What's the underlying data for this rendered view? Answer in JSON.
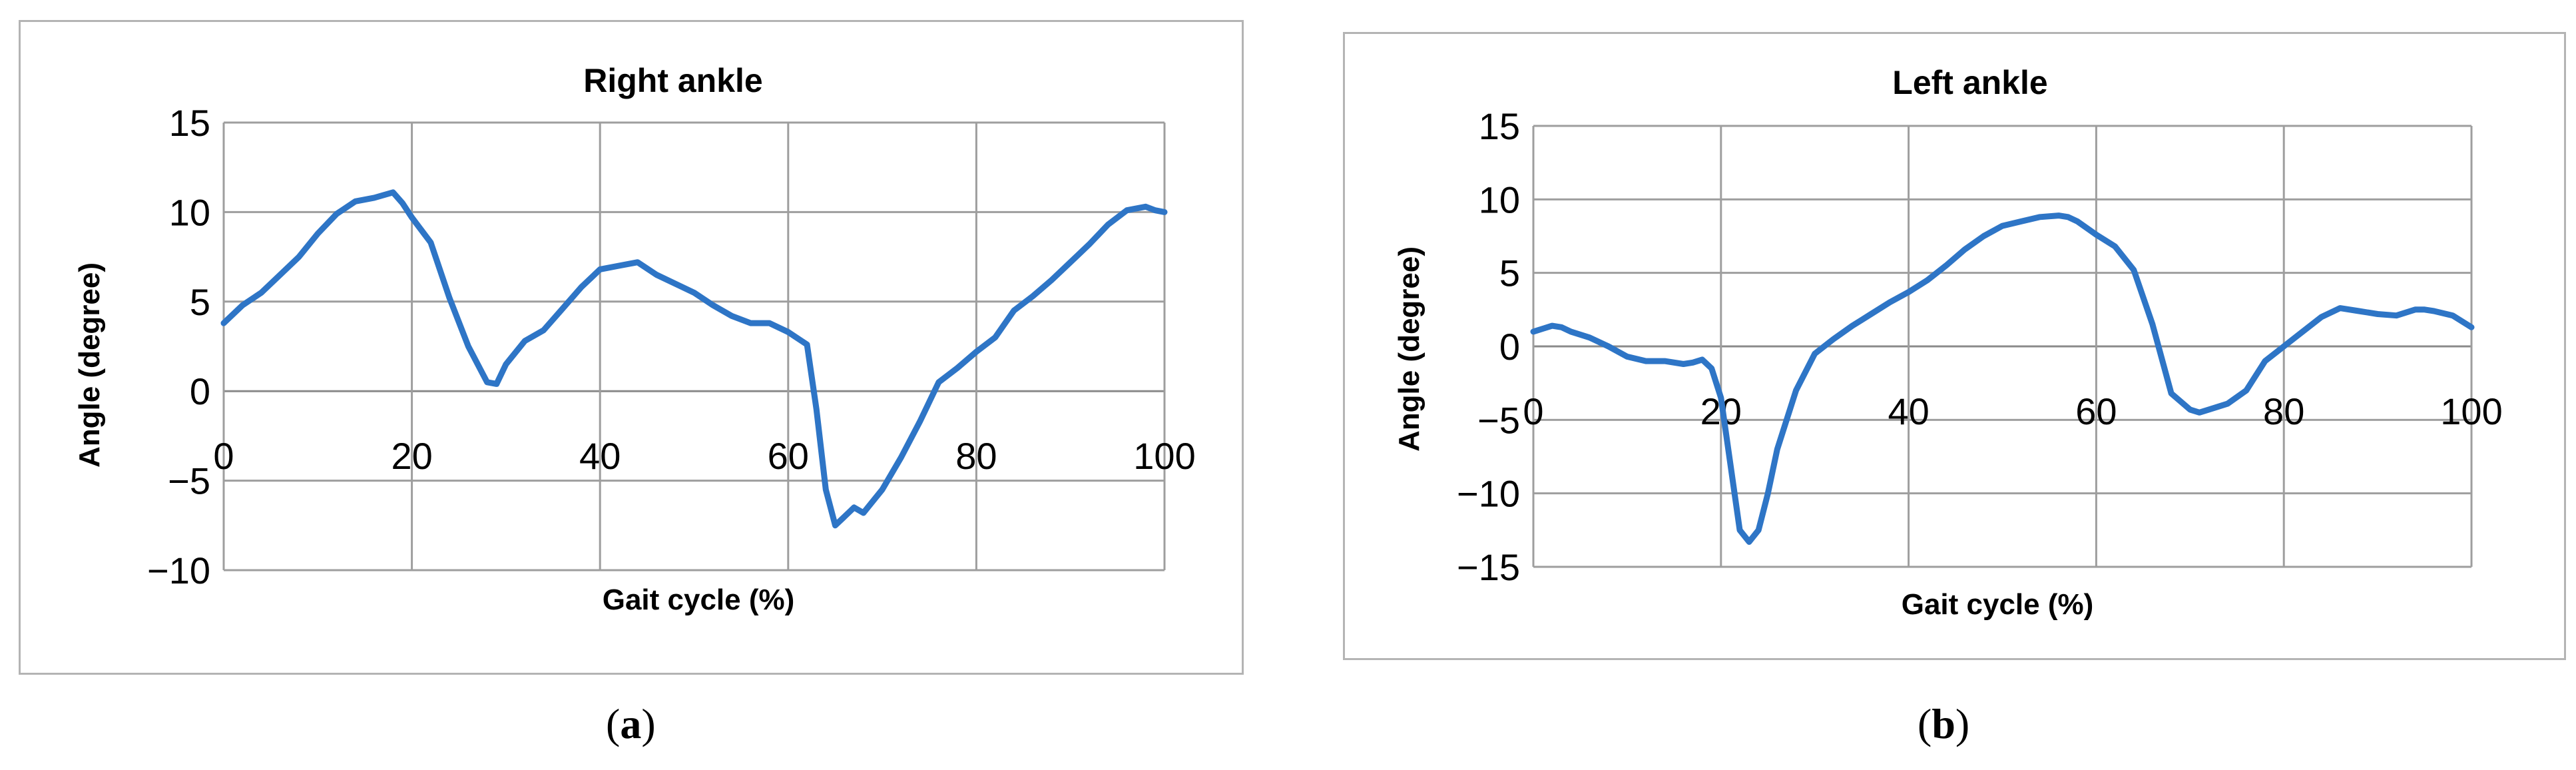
{
  "colors": {
    "line": "#2e75c6",
    "grid": "#9e9e9e",
    "border": "#b4b4b4"
  },
  "captions": {
    "a": "a",
    "b": "b"
  },
  "chart_data": [
    {
      "type": "line",
      "title": "Right ankle",
      "xlabel": "Gait cycle (%)",
      "ylabel": "Angle (degree)",
      "xlim": [
        0,
        100
      ],
      "ylim": [
        -10,
        15
      ],
      "xticks": [
        "0",
        "20",
        "40",
        "60",
        "80",
        "100"
      ],
      "yticks": [
        "15",
        "10",
        "5",
        "0",
        "−5",
        "−10"
      ],
      "grid": true,
      "legend": "none",
      "series": [
        {
          "x": [
            0,
            2,
            4,
            6,
            8,
            10,
            12,
            14,
            16,
            18,
            19,
            20,
            22,
            24,
            26,
            28,
            29,
            30,
            32,
            34,
            36,
            38,
            40,
            42,
            44,
            46,
            48,
            50,
            52,
            54,
            56,
            58,
            60,
            62,
            63,
            64,
            65,
            66,
            67,
            68,
            70,
            72,
            74,
            76,
            78,
            80,
            82,
            84,
            86,
            88,
            90,
            92,
            94,
            96,
            98,
            99,
            100
          ],
          "y": [
            3.8,
            4.8,
            5.5,
            6.5,
            7.5,
            8.8,
            9.9,
            10.6,
            10.8,
            11.1,
            10.5,
            9.7,
            8.3,
            5.2,
            2.5,
            0.5,
            0.4,
            1.5,
            2.8,
            3.4,
            4.6,
            5.8,
            6.8,
            7.0,
            7.2,
            6.5,
            6.0,
            5.5,
            4.8,
            4.2,
            3.8,
            3.8,
            3.3,
            2.6,
            -1.0,
            -5.5,
            -7.5,
            -7.0,
            -6.5,
            -6.8,
            -5.5,
            -3.7,
            -1.7,
            0.5,
            1.3,
            2.2,
            3.0,
            4.5,
            5.3,
            6.2,
            7.2,
            8.2,
            9.3,
            10.1,
            10.3,
            10.1,
            10.0
          ]
        }
      ]
    },
    {
      "type": "line",
      "title": "Left ankle",
      "xlabel": "Gait cycle (%)",
      "ylabel": "Angle (degree)",
      "xlim": [
        0,
        100
      ],
      "ylim": [
        -15,
        15
      ],
      "xticks": [
        "0",
        "20",
        "40",
        "60",
        "80",
        "100"
      ],
      "yticks": [
        "15",
        "10",
        "5",
        "0",
        "−5",
        "−10",
        "−15"
      ],
      "grid": true,
      "legend": "none",
      "series": [
        {
          "x": [
            0,
            1,
            2,
            3,
            4,
            6,
            8,
            10,
            12,
            14,
            16,
            17,
            18,
            19,
            20,
            21,
            22,
            23,
            24,
            25,
            26,
            28,
            30,
            32,
            34,
            36,
            38,
            40,
            42,
            44,
            46,
            48,
            50,
            52,
            54,
            56,
            57,
            58,
            60,
            62,
            64,
            66,
            68,
            70,
            71,
            72,
            74,
            76,
            78,
            80,
            82,
            84,
            86,
            88,
            90,
            92,
            94,
            95,
            96,
            98,
            100
          ],
          "y": [
            1.0,
            1.2,
            1.4,
            1.3,
            1.0,
            0.6,
            0.0,
            -0.7,
            -1.0,
            -1.0,
            -1.2,
            -1.1,
            -0.9,
            -1.5,
            -3.5,
            -8.0,
            -12.5,
            -13.3,
            -12.5,
            -10.0,
            -7.0,
            -3.0,
            -0.5,
            0.5,
            1.4,
            2.2,
            3.0,
            3.7,
            4.5,
            5.5,
            6.6,
            7.5,
            8.2,
            8.5,
            8.8,
            8.9,
            8.8,
            8.5,
            7.6,
            6.8,
            5.2,
            1.5,
            -3.2,
            -4.3,
            -4.5,
            -4.3,
            -3.9,
            -3.0,
            -1.0,
            0.0,
            1.0,
            2.0,
            2.6,
            2.4,
            2.2,
            2.1,
            2.5,
            2.5,
            2.4,
            2.1,
            1.3
          ]
        }
      ]
    }
  ]
}
